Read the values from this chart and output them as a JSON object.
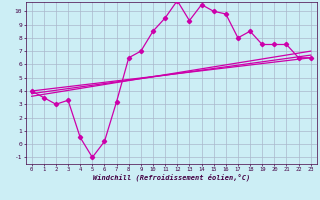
{
  "xlabel": "Windchill (Refroidissement éolien,°C)",
  "xlim": [
    -0.5,
    23.5
  ],
  "ylim": [
    -1.5,
    10.7
  ],
  "xticks": [
    0,
    1,
    2,
    3,
    4,
    5,
    6,
    7,
    8,
    9,
    10,
    11,
    12,
    13,
    14,
    15,
    16,
    17,
    18,
    19,
    20,
    21,
    22,
    23
  ],
  "yticks": [
    -1,
    0,
    1,
    2,
    3,
    4,
    5,
    6,
    7,
    8,
    9,
    10
  ],
  "background_color": "#cceef5",
  "grid_color": "#aab8cc",
  "line_color": "#cc00aa",
  "main_data_x": [
    0,
    1,
    2,
    3,
    4,
    5,
    6,
    7,
    8,
    9,
    10,
    11,
    12,
    13,
    14,
    15,
    16,
    17,
    18,
    19,
    20,
    21,
    22,
    23
  ],
  "main_data_y": [
    4.0,
    3.5,
    3.0,
    3.3,
    0.5,
    -1.0,
    0.2,
    3.2,
    6.5,
    7.0,
    8.5,
    9.5,
    10.8,
    9.3,
    10.5,
    10.0,
    9.8,
    8.0,
    8.5,
    7.5,
    7.5,
    7.5,
    6.5,
    6.5
  ],
  "reg_lines": [
    {
      "x0": 0,
      "y0": 4.0,
      "x1": 23,
      "y1": 6.5
    },
    {
      "x0": 0,
      "y0": 3.8,
      "x1": 23,
      "y1": 6.7
    },
    {
      "x0": 0,
      "y0": 3.6,
      "x1": 23,
      "y1": 7.0
    }
  ]
}
